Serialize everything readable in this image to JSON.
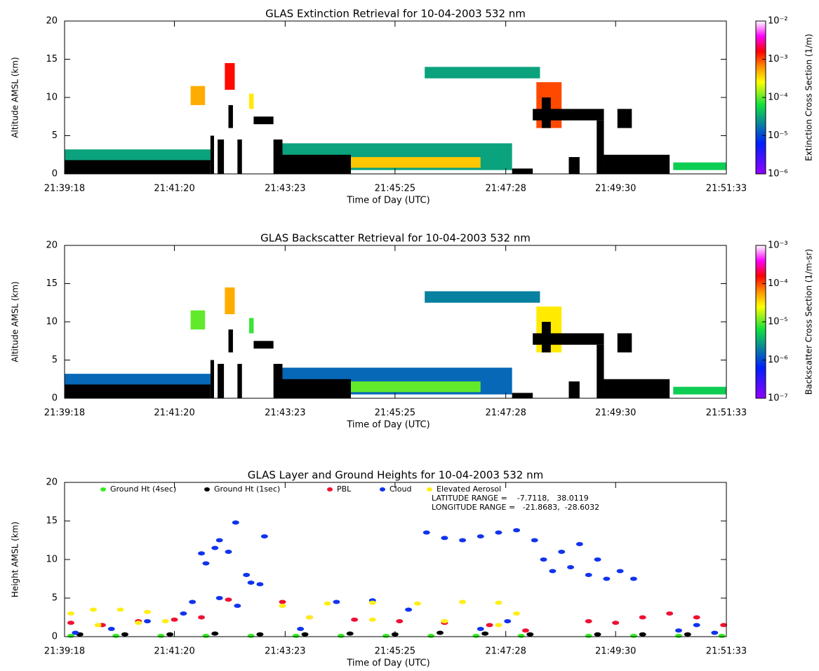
{
  "chart_data": [
    {
      "type": "curtain",
      "title": "GLAS Extinction Retrieval for 10-04-2003 532 nm",
      "xlabel": "Time of Day (UTC)",
      "ylabel": "Altitude AMSL (km)",
      "xlim": [
        77958,
        78693
      ],
      "xticks": [
        {
          "value": 77958,
          "label": "21:39:18"
        },
        {
          "value": 78080,
          "label": "21:41:20"
        },
        {
          "value": 78203,
          "label": "21:43:23"
        },
        {
          "value": 78325,
          "label": "21:45:25"
        },
        {
          "value": 78448,
          "label": "21:47:28"
        },
        {
          "value": 78570,
          "label": "21:49:30"
        },
        {
          "value": 78693,
          "label": "21:51:33"
        }
      ],
      "ylim": [
        0,
        20
      ],
      "yticks": [
        0,
        5,
        10,
        15,
        20
      ],
      "colorbar": {
        "label": "Extinction Cross Section (1/m)",
        "scale": "log",
        "lim": [
          1e-06,
          0.01
        ],
        "ticks": [
          {
            "value": 1e-06,
            "label": "10⁻⁶"
          },
          {
            "value": 1e-05,
            "label": "10⁻⁵"
          },
          {
            "value": 0.0001,
            "label": "10⁻⁴"
          },
          {
            "value": 0.001,
            "label": "10⁻³"
          },
          {
            "value": 0.01,
            "label": "10⁻²"
          }
        ]
      },
      "regions": [
        {
          "x": [
            77958,
            78120
          ],
          "y": [
            1.5,
            3.2
          ],
          "value": 3e-05
        },
        {
          "x": [
            78098,
            78114
          ],
          "y": [
            9,
            11.5
          ],
          "value": 0.0005
        },
        {
          "x": [
            78136,
            78147
          ],
          "y": [
            11,
            14.5
          ],
          "value": 0.0015
        },
        {
          "x": [
            78163,
            78168
          ],
          "y": [
            8.5,
            10.5
          ],
          "value": 0.0003
        },
        {
          "x": [
            78194,
            78455
          ],
          "y": [
            0.5,
            4
          ],
          "value": 3e-05
        },
        {
          "x": [
            78250,
            78420
          ],
          "y": [
            0.8,
            2.2
          ],
          "value": 0.0004
        },
        {
          "x": [
            78358,
            78486
          ],
          "y": [
            12.5,
            14
          ],
          "value": 3e-05
        },
        {
          "x": [
            78482,
            78510
          ],
          "y": [
            6,
            12
          ],
          "value": 0.001
        },
        {
          "x": [
            78634,
            78693
          ],
          "y": [
            0.5,
            1.5
          ],
          "value": 5e-05
        }
      ],
      "attenuated": [
        {
          "x": [
            77958,
            78120
          ],
          "y": [
            0,
            1.8
          ]
        },
        {
          "x": [
            78120,
            78124
          ],
          "y": [
            0,
            5
          ]
        },
        {
          "x": [
            78128,
            78135
          ],
          "y": [
            0,
            4.5
          ]
        },
        {
          "x": [
            78140,
            78145
          ],
          "y": [
            6,
            9
          ]
        },
        {
          "x": [
            78150,
            78155
          ],
          "y": [
            0,
            4.5
          ]
        },
        {
          "x": [
            78168,
            78190
          ],
          "y": [
            6.5,
            7.5
          ]
        },
        {
          "x": [
            78192,
            78276
          ],
          "y": [
            0,
            2.5
          ]
        },
        {
          "x": [
            78190,
            78200
          ],
          "y": [
            0,
            4.5
          ]
        },
        {
          "x": [
            78455,
            78478
          ],
          "y": [
            0,
            0.7
          ]
        },
        {
          "x": [
            78478,
            78557
          ],
          "y": [
            7,
            8.5
          ]
        },
        {
          "x": [
            78488,
            78498
          ],
          "y": [
            6,
            10
          ]
        },
        {
          "x": [
            78518,
            78530
          ],
          "y": [
            0,
            2.2
          ]
        },
        {
          "x": [
            78549,
            78557
          ],
          "y": [
            0,
            7
          ]
        },
        {
          "x": [
            78557,
            78630
          ],
          "y": [
            0,
            2.5
          ]
        },
        {
          "x": [
            78572,
            78588
          ],
          "y": [
            6,
            8.5
          ]
        }
      ]
    },
    {
      "type": "curtain",
      "title": "GLAS Backscatter Retrieval for 10-04-2003 532 nm",
      "xlabel": "Time of Day (UTC)",
      "ylabel": "Altitude AMSL (km)",
      "xlim": [
        77958,
        78693
      ],
      "xticks": [
        {
          "value": 77958,
          "label": "21:39:18"
        },
        {
          "value": 78080,
          "label": "21:41:20"
        },
        {
          "value": 78203,
          "label": "21:43:23"
        },
        {
          "value": 78325,
          "label": "21:45:25"
        },
        {
          "value": 78448,
          "label": "21:47:28"
        },
        {
          "value": 78570,
          "label": "21:49:30"
        },
        {
          "value": 78693,
          "label": "21:51:33"
        }
      ],
      "ylim": [
        0,
        20
      ],
      "yticks": [
        0,
        5,
        10,
        15,
        20
      ],
      "colorbar": {
        "label": "Backscatter Cross Section (1/m-sr)",
        "scale": "log",
        "lim": [
          1e-07,
          0.001
        ],
        "ticks": [
          {
            "value": 1e-07,
            "label": "10⁻⁷"
          },
          {
            "value": 1e-06,
            "label": "10⁻⁶"
          },
          {
            "value": 1e-05,
            "label": "10⁻⁵"
          },
          {
            "value": 0.0001,
            "label": "10⁻⁴"
          },
          {
            "value": 0.001,
            "label": "10⁻³"
          }
        ]
      },
      "regions": [
        {
          "x": [
            77958,
            78120
          ],
          "y": [
            1.5,
            3.2
          ],
          "value": 1.5e-06
        },
        {
          "x": [
            78098,
            78114
          ],
          "y": [
            9,
            11.5
          ],
          "value": 1e-05
        },
        {
          "x": [
            78136,
            78147
          ],
          "y": [
            11,
            14.5
          ],
          "value": 5e-05
        },
        {
          "x": [
            78163,
            78168
          ],
          "y": [
            8.5,
            10.5
          ],
          "value": 8e-06
        },
        {
          "x": [
            78194,
            78455
          ],
          "y": [
            0.5,
            4
          ],
          "value": 1.5e-06
        },
        {
          "x": [
            78250,
            78420
          ],
          "y": [
            0.8,
            2.2
          ],
          "value": 1e-05
        },
        {
          "x": [
            78358,
            78486
          ],
          "y": [
            12.5,
            14
          ],
          "value": 2e-06
        },
        {
          "x": [
            78482,
            78510
          ],
          "y": [
            6,
            12
          ],
          "value": 3e-05
        },
        {
          "x": [
            78634,
            78693
          ],
          "y": [
            0.5,
            1.5
          ],
          "value": 5e-06
        }
      ],
      "attenuated": [
        {
          "x": [
            77958,
            78120
          ],
          "y": [
            0,
            1.8
          ]
        },
        {
          "x": [
            78120,
            78124
          ],
          "y": [
            0,
            5
          ]
        },
        {
          "x": [
            78128,
            78135
          ],
          "y": [
            0,
            4.5
          ]
        },
        {
          "x": [
            78140,
            78145
          ],
          "y": [
            6,
            9
          ]
        },
        {
          "x": [
            78150,
            78155
          ],
          "y": [
            0,
            4.5
          ]
        },
        {
          "x": [
            78168,
            78190
          ],
          "y": [
            6.5,
            7.5
          ]
        },
        {
          "x": [
            78192,
            78276
          ],
          "y": [
            0,
            2.5
          ]
        },
        {
          "x": [
            78190,
            78200
          ],
          "y": [
            0,
            4.5
          ]
        },
        {
          "x": [
            78455,
            78478
          ],
          "y": [
            0,
            0.7
          ]
        },
        {
          "x": [
            78478,
            78557
          ],
          "y": [
            7,
            8.5
          ]
        },
        {
          "x": [
            78488,
            78498
          ],
          "y": [
            6,
            10
          ]
        },
        {
          "x": [
            78518,
            78530
          ],
          "y": [
            0,
            2.2
          ]
        },
        {
          "x": [
            78549,
            78557
          ],
          "y": [
            0,
            7
          ]
        },
        {
          "x": [
            78557,
            78630
          ],
          "y": [
            0,
            2.5
          ]
        },
        {
          "x": [
            78572,
            78588
          ],
          "y": [
            6,
            8.5
          ]
        }
      ]
    },
    {
      "type": "scatter",
      "title": "GLAS Layer and Ground Heights for 10-04-2003 532 nm",
      "xlabel": "Time of Day (UTC)",
      "ylabel": "Height AMSL (km)",
      "xlim": [
        77958,
        78693
      ],
      "xticks": [
        {
          "value": 77958,
          "label": "21:39:18"
        },
        {
          "value": 78080,
          "label": "21:41:20"
        },
        {
          "value": 78203,
          "label": "21:43:23"
        },
        {
          "value": 78325,
          "label": "21:45:25"
        },
        {
          "value": 78448,
          "label": "21:47:28"
        },
        {
          "value": 78570,
          "label": "21:49:30"
        },
        {
          "value": 78693,
          "label": "21:51:33"
        }
      ],
      "ylim": [
        0,
        20
      ],
      "yticks": [
        0,
        5,
        10,
        15,
        20
      ],
      "annotations": [
        "LATITUDE RANGE =    -7.7118,   38.0119",
        "LONGITUDE RANGE =   -21.8683,  -28.6032"
      ],
      "series": [
        {
          "name": "Ground Ht (4sec)",
          "color": "#33ee22",
          "x": [
            77965,
            78015,
            78065,
            78115,
            78165,
            78215,
            78265,
            78315,
            78365,
            78415,
            78465,
            78540,
            78590,
            78640,
            78688
          ],
          "values": [
            0.1,
            0.1,
            0.1,
            0.1,
            0.1,
            0.1,
            0.1,
            0.1,
            0.1,
            0.1,
            0.1,
            0.1,
            0.1,
            0.1,
            0.1
          ]
        },
        {
          "name": "Ground Ht (1sec)",
          "color": "#000000",
          "x": [
            77975,
            78025,
            78075,
            78125,
            78175,
            78225,
            78275,
            78325,
            78375,
            78425,
            78475,
            78550,
            78600,
            78650
          ],
          "values": [
            0.3,
            0.3,
            0.3,
            0.4,
            0.3,
            0.3,
            0.4,
            0.3,
            0.5,
            0.4,
            0.3,
            0.3,
            0.3,
            0.3
          ]
        },
        {
          "name": "PBL",
          "color": "#ee1133",
          "x": [
            77965,
            78000,
            78040,
            78080,
            78110,
            78140,
            78200,
            78230,
            78280,
            78330,
            78380,
            78430,
            78470,
            78540,
            78570,
            78600,
            78630,
            78660,
            78690
          ],
          "values": [
            1.8,
            1.5,
            2.0,
            2.2,
            2.5,
            4.8,
            4.5,
            2.5,
            2.2,
            2.0,
            1.8,
            1.5,
            0.8,
            2.0,
            1.8,
            2.5,
            3.0,
            2.5,
            1.5
          ]
        },
        {
          "name": "Cloud",
          "color": "#1133ee",
          "x": [
            77970,
            78010,
            78050,
            78090,
            78110,
            78115,
            78125,
            78130,
            78140,
            78148,
            78150,
            78160,
            78165,
            78175,
            78180,
            78100,
            78130,
            78220,
            78260,
            78300,
            78340,
            78360,
            78380,
            78400,
            78420,
            78440,
            78460,
            78480,
            78490,
            78500,
            78510,
            78520,
            78530,
            78540,
            78550,
            78560,
            78575,
            78590,
            78420,
            78450,
            78640,
            78660,
            78680
          ],
          "values": [
            0.5,
            1.0,
            2.0,
            3.0,
            10.8,
            9.5,
            11.5,
            12.5,
            11.0,
            14.8,
            4.0,
            8.0,
            7.0,
            6.8,
            13.0,
            4.5,
            5.0,
            1.0,
            4.5,
            4.7,
            3.5,
            13.5,
            12.8,
            12.5,
            13.0,
            13.5,
            13.8,
            12.5,
            10.0,
            8.5,
            11.0,
            9.0,
            12.0,
            8.0,
            10.0,
            7.5,
            8.5,
            7.5,
            1.0,
            2.0,
            0.8,
            1.5,
            0.5
          ]
        },
        {
          "name": "Elevated Aerosol",
          "color": "#ffee11",
          "x": [
            77965,
            77990,
            78020,
            78050,
            78070,
            77995,
            78040,
            78200,
            78250,
            78300,
            78350,
            78400,
            78440,
            78230,
            78300,
            78380,
            78440,
            78460
          ],
          "values": [
            3.0,
            3.5,
            3.5,
            3.2,
            2.0,
            1.5,
            1.8,
            4.0,
            4.3,
            4.4,
            4.3,
            4.5,
            4.4,
            2.5,
            2.2,
            2.0,
            1.5,
            3.0
          ]
        }
      ]
    }
  ]
}
